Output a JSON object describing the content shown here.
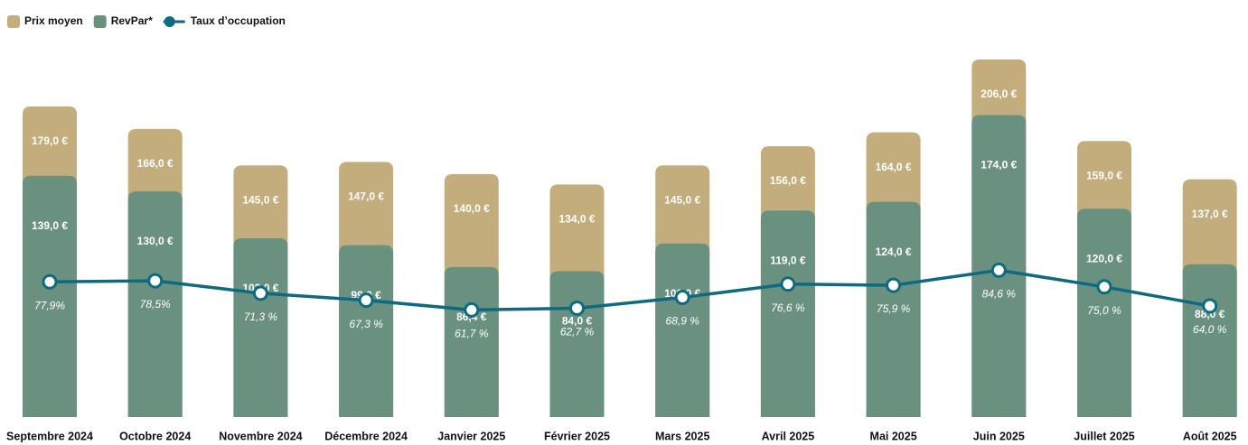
{
  "chart_data": {
    "type": "bar",
    "categories": [
      "Septembre 2024",
      "Octobre 2024",
      "Novembre 2024",
      "Décembre 2024",
      "Janvier 2025",
      "Février 2025",
      "Mars 2025",
      "Avril 2025",
      "Mai 2025",
      "Juin 2025",
      "Juillet 2025",
      "Août 2025"
    ],
    "ylim": [
      0,
      220
    ],
    "y2lim": [
      0,
      220
    ],
    "series": [
      {
        "name": "Prix moyen",
        "color": "#c4ad7c",
        "values": [
          179,
          166,
          145,
          147,
          140,
          134,
          145,
          156,
          164,
          206,
          159,
          137
        ],
        "value_labels": [
          "179,0 €",
          "166,0 €",
          "145,0 €",
          "147,0 €",
          "140,0 €",
          "134,0 €",
          "145,0 €",
          "156,0 €",
          "164,0 €",
          "206,0 €",
          "159,0 €",
          "137,0 €"
        ]
      },
      {
        "name": "RevPar*",
        "color": "#6a9180",
        "values": [
          139,
          130,
          103,
          99,
          86.4,
          84,
          100,
          119,
          124,
          174,
          120,
          88
        ],
        "value_labels": [
          "139,0 €",
          "130,0 €",
          "103,0 €",
          "99,0 €",
          "86,4 €",
          "84,0 €",
          "100,0 €",
          "119,0 €",
          "124,0 €",
          "174,0 €",
          "120,0 €",
          "88,0 €"
        ]
      },
      {
        "name": "Taux d’occupation",
        "color": "#0e6a80",
        "type": "line",
        "axis": "y2",
        "values": [
          77.9,
          78.5,
          71.3,
          67.3,
          61.7,
          62.7,
          68.9,
          76.6,
          75.9,
          84.6,
          75.0,
          64.0
        ],
        "value_labels": [
          "77,9%",
          "78,5%",
          "71,3 %",
          "67,3 %",
          "61,7 %",
          "62,7 %",
          "68,9 %",
          "76,6 %",
          "75,9 %",
          "84,6 %",
          "75,0 %",
          "64,0 %"
        ]
      }
    ],
    "legend": "top-left"
  }
}
